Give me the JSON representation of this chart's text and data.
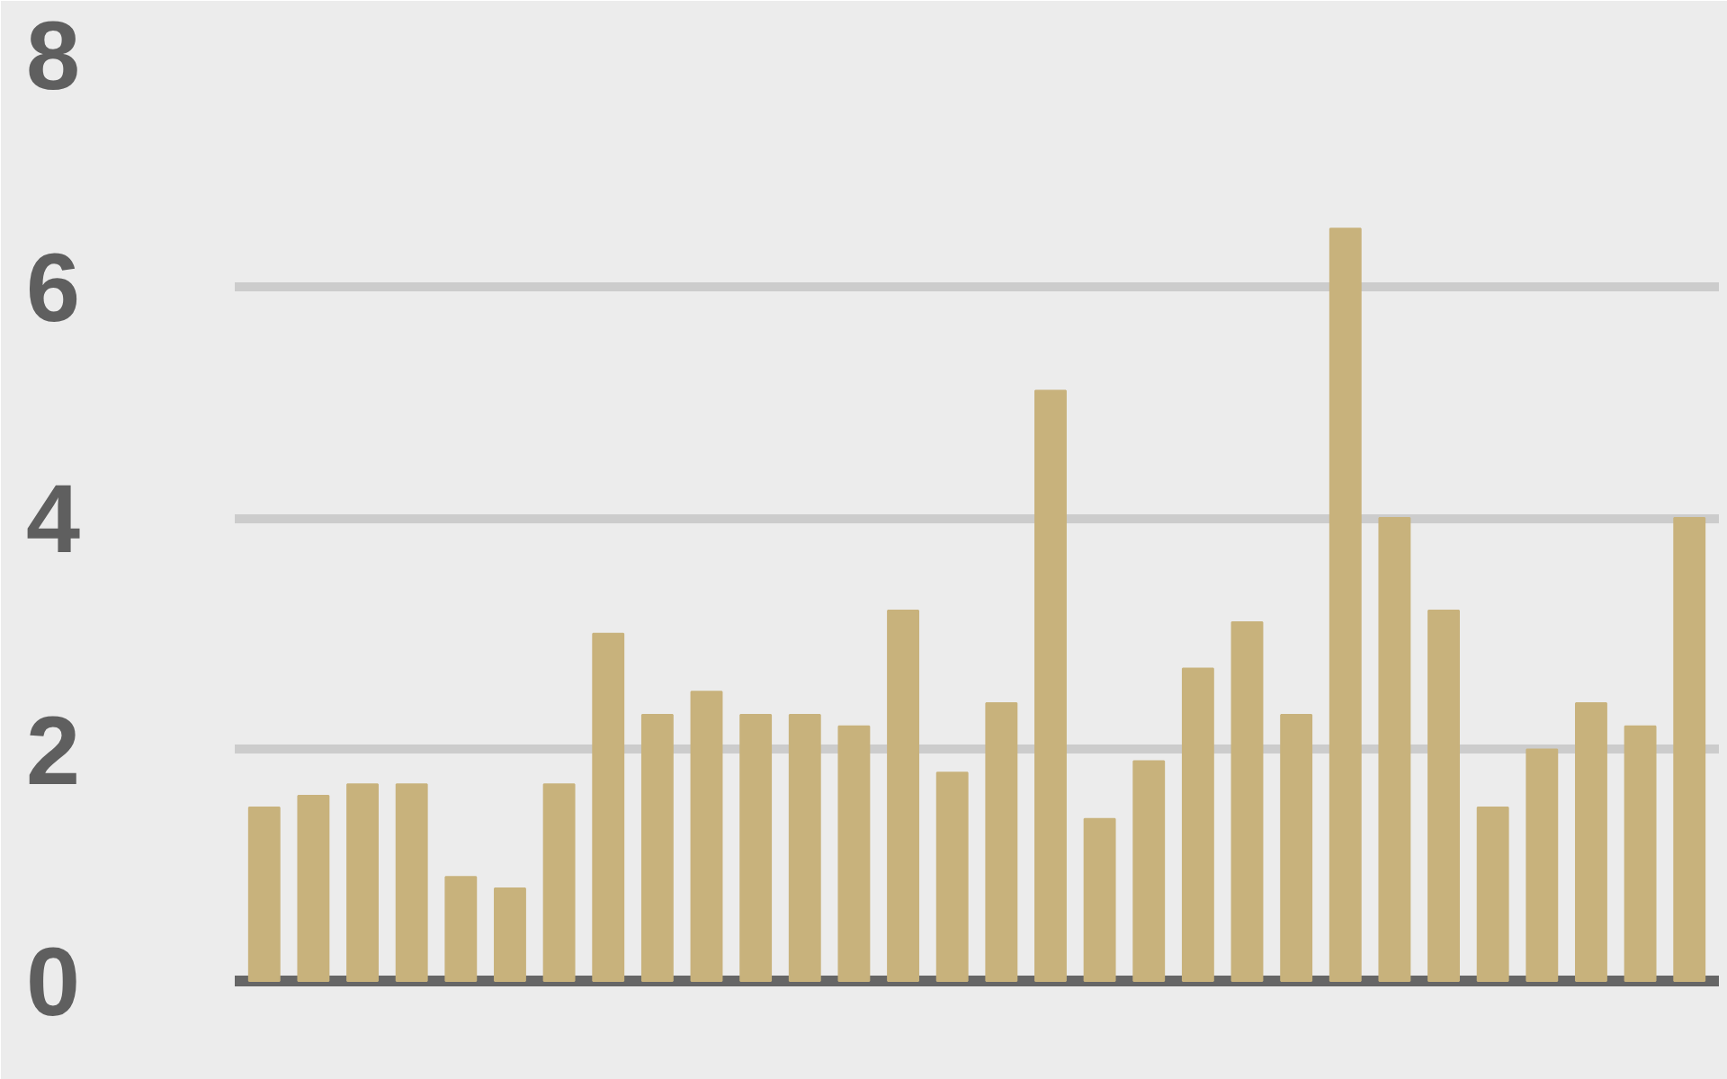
{
  "chart_data": {
    "type": "bar",
    "categories": [
      null,
      null,
      null,
      null,
      null,
      null,
      null,
      null,
      null,
      null,
      null,
      null,
      null,
      null,
      null,
      null,
      null,
      null,
      null,
      null,
      null,
      null,
      null,
      null,
      null,
      null,
      null,
      null,
      null,
      null
    ],
    "values": [
      1.5,
      1.6,
      1.7,
      1.7,
      0.9,
      0.8,
      1.7,
      3.0,
      2.3,
      2.5,
      2.3,
      2.3,
      2.2,
      3.2,
      1.8,
      2.4,
      5.1,
      1.4,
      1.9,
      2.7,
      3.1,
      2.3,
      6.5,
      4.0,
      3.2,
      1.5,
      2.0,
      2.4,
      2.2,
      4.0
    ],
    "color": "#c8b27c",
    "ylim": [
      0,
      8
    ],
    "yticks": [
      0,
      2,
      4,
      6,
      8
    ],
    "grid": "y",
    "tick_labels": "y"
  }
}
